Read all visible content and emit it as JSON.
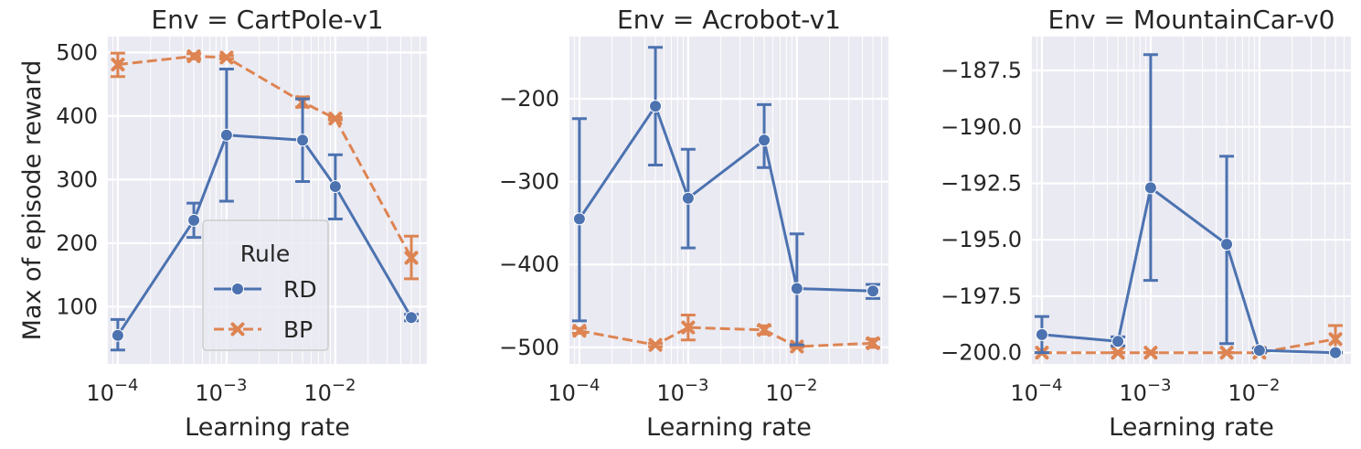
{
  "colors": {
    "RD": "#4c72b0",
    "BP": "#dd8452",
    "panel_bg": "#eaeaf2",
    "grid": "#ffffff"
  },
  "chart_data": [
    {
      "type": "line",
      "title": "Env = CartPole-v1",
      "xlabel": "Learning rate",
      "ylabel": "Max of episode reward",
      "xscale": "log",
      "x_ticks": [
        "10^-4",
        "10^-3",
        "10^-2"
      ],
      "y_ticks": [
        "100",
        "200",
        "300",
        "400",
        "500"
      ],
      "ylim": [
        10,
        525
      ],
      "grid": true,
      "legend": {
        "title": "Rule",
        "placement": "lower-center",
        "entries": [
          "RD",
          "BP"
        ]
      },
      "series": [
        {
          "name": "RD",
          "marker": "circle",
          "dash": "solid",
          "points": [
            {
              "x": 0.0001,
              "y": 55,
              "lo": 32,
              "hi": 80
            },
            {
              "x": 0.0005,
              "y": 236,
              "lo": 209,
              "hi": 263
            },
            {
              "x": 0.001,
              "y": 370,
              "lo": 266,
              "hi": 474
            },
            {
              "x": 0.005,
              "y": 362,
              "lo": 297,
              "hi": 427
            },
            {
              "x": 0.01,
              "y": 289,
              "lo": 238,
              "hi": 339
            },
            {
              "x": 0.05,
              "y": 83,
              "lo": 78,
              "hi": 88
            }
          ]
        },
        {
          "name": "BP",
          "marker": "x",
          "dash": "dashed",
          "points": [
            {
              "x": 0.0001,
              "y": 481,
              "lo": 462,
              "hi": 499
            },
            {
              "x": 0.0005,
              "y": 494,
              "lo": 490,
              "hi": 498
            },
            {
              "x": 0.001,
              "y": 492,
              "lo": 490,
              "hi": 495
            },
            {
              "x": 0.005,
              "y": 422,
              "lo": 414,
              "hi": 430
            },
            {
              "x": 0.01,
              "y": 396,
              "lo": 394,
              "hi": 398
            },
            {
              "x": 0.05,
              "y": 177,
              "lo": 144,
              "hi": 211
            }
          ]
        }
      ]
    },
    {
      "type": "line",
      "title": "Env = Acrobot-v1",
      "xlabel": "Learning rate",
      "ylabel": "",
      "xscale": "log",
      "x_ticks": [
        "10^-4",
        "10^-3",
        "10^-2"
      ],
      "y_ticks": [
        "−500",
        "−400",
        "−300",
        "−200"
      ],
      "ylim": [
        -520,
        -125
      ],
      "grid": true,
      "series": [
        {
          "name": "RD",
          "marker": "circle",
          "dash": "solid",
          "points": [
            {
              "x": 0.0001,
              "y": -345,
              "lo": -468,
              "hi": -224
            },
            {
              "x": 0.0005,
              "y": -209,
              "lo": -280,
              "hi": -138
            },
            {
              "x": 0.001,
              "y": -320,
              "lo": -380,
              "hi": -261
            },
            {
              "x": 0.005,
              "y": -250,
              "lo": -283,
              "hi": -207
            },
            {
              "x": 0.01,
              "y": -429,
              "lo": -497,
              "hi": -363
            },
            {
              "x": 0.05,
              "y": -432,
              "lo": -441,
              "hi": -424
            }
          ]
        },
        {
          "name": "BP",
          "marker": "x",
          "dash": "dashed",
          "points": [
            {
              "x": 0.0001,
              "y": -480,
              "lo": -483,
              "hi": -477
            },
            {
              "x": 0.0005,
              "y": -497,
              "lo": -499,
              "hi": -495
            },
            {
              "x": 0.001,
              "y": -476,
              "lo": -491,
              "hi": -461
            },
            {
              "x": 0.005,
              "y": -479,
              "lo": -484,
              "hi": -474
            },
            {
              "x": 0.01,
              "y": -499,
              "lo": -500,
              "hi": -498
            },
            {
              "x": 0.05,
              "y": -495,
              "lo": -500,
              "hi": -490
            }
          ]
        }
      ]
    },
    {
      "type": "line",
      "title": "Env = MountainCar-v0",
      "xlabel": "Learning rate",
      "ylabel": "",
      "xscale": "log",
      "x_ticks": [
        "10^-4",
        "10^-3",
        "10^-2"
      ],
      "y_ticks": [
        "−200.0",
        "−197.5",
        "−195.0",
        "−192.5",
        "−190.0",
        "−187.5"
      ],
      "ylim": [
        -200.5,
        -186.0
      ],
      "grid": true,
      "series": [
        {
          "name": "RD",
          "marker": "circle",
          "dash": "solid",
          "points": [
            {
              "x": 0.0001,
              "y": -199.2,
              "lo": -200.0,
              "hi": -198.4
            },
            {
              "x": 0.0005,
              "y": -199.5,
              "lo": -199.7,
              "hi": -199.3
            },
            {
              "x": 0.001,
              "y": -192.7,
              "lo": -196.8,
              "hi": -186.8
            },
            {
              "x": 0.005,
              "y": -195.2,
              "lo": -199.6,
              "hi": -191.3
            },
            {
              "x": 0.01,
              "y": -199.9,
              "lo": -200.0,
              "hi": -199.8
            },
            {
              "x": 0.05,
              "y": -200.0,
              "lo": -200.0,
              "hi": -200.0
            }
          ]
        },
        {
          "name": "BP",
          "marker": "x",
          "dash": "dashed",
          "points": [
            {
              "x": 0.0001,
              "y": -200.0,
              "lo": -200.0,
              "hi": -200.0
            },
            {
              "x": 0.0005,
              "y": -200.0,
              "lo": -200.0,
              "hi": -200.0
            },
            {
              "x": 0.001,
              "y": -200.0,
              "lo": -200.0,
              "hi": -200.0
            },
            {
              "x": 0.005,
              "y": -200.0,
              "lo": -200.0,
              "hi": -200.0
            },
            {
              "x": 0.01,
              "y": -200.0,
              "lo": -200.0,
              "hi": -200.0
            },
            {
              "x": 0.05,
              "y": -199.4,
              "lo": -200.0,
              "hi": -198.8
            }
          ]
        }
      ]
    }
  ]
}
